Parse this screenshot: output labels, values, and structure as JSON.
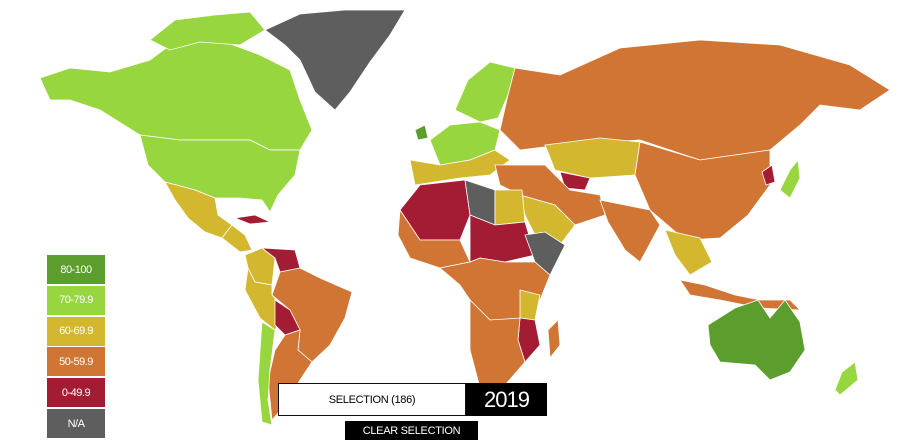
{
  "legend": [
    {
      "label": "80-100",
      "color": "#5b9e2d"
    },
    {
      "label": "70-79.9",
      "color": "#98d640"
    },
    {
      "label": "60-69.9",
      "color": "#d3b72f"
    },
    {
      "label": "50-59.9",
      "color": "#d17535"
    },
    {
      "label": "0-49.9",
      "color": "#a41c33"
    },
    {
      "label": "N/A",
      "color": "#5e5e5e"
    }
  ],
  "selection": "SELECTION (186)",
  "year": "2019",
  "clear_selection": "CLEAR SELECTION"
}
